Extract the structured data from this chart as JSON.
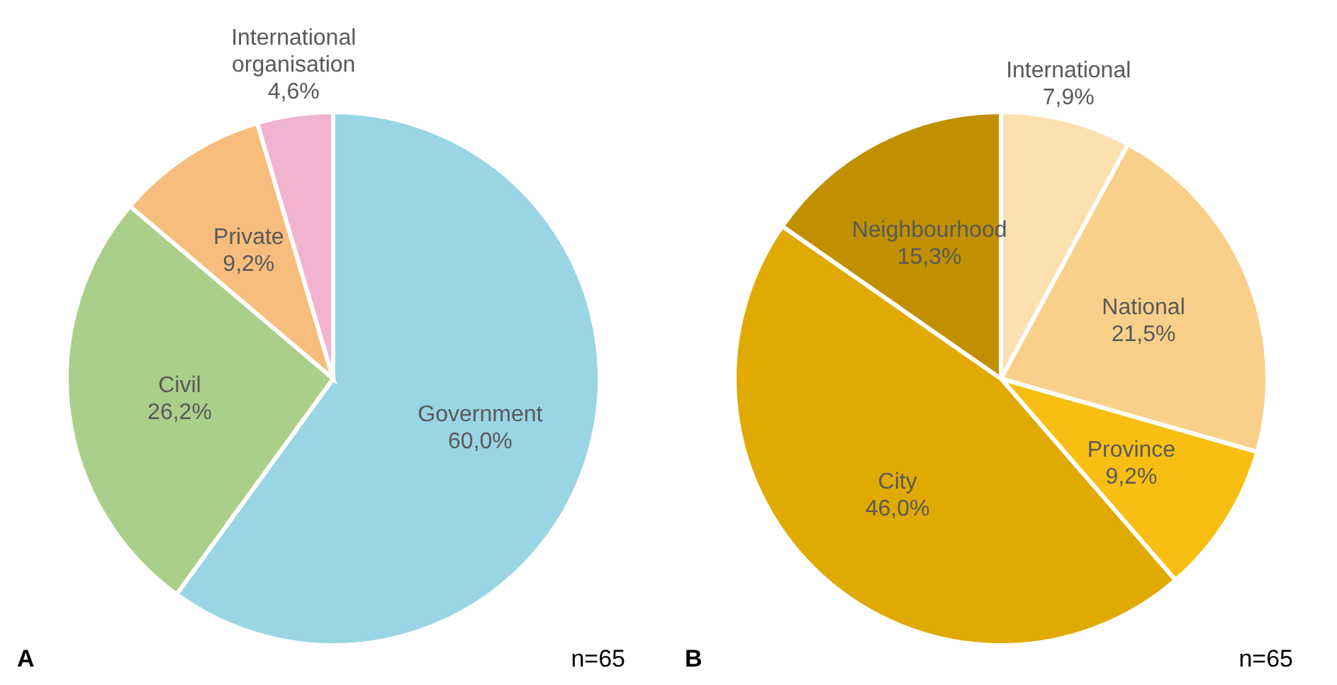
{
  "chart_data": [
    {
      "type": "pie",
      "title": "A",
      "annotations": [
        "n=65"
      ],
      "legend": false,
      "categories": [
        "Government",
        "Civil",
        "Private",
        "International organisation"
      ],
      "values": [
        60.0,
        26.2,
        9.2,
        4.6
      ],
      "value_labels": [
        "60,0%",
        "26,2%",
        "9,2%",
        "4,6%"
      ],
      "colors": [
        "#99d5e4",
        "#aacf8a",
        "#f7bd7c",
        "#f2b3d0"
      ]
    },
    {
      "type": "pie",
      "title": "B",
      "annotations": [
        "n=65"
      ],
      "legend": false,
      "categories": [
        "International",
        "National",
        "Province",
        "City",
        "Neighbourhood"
      ],
      "values": [
        7.9,
        21.5,
        9.2,
        46.0,
        15.3
      ],
      "value_labels": [
        "7,9%",
        "21,5%",
        "9,2%",
        "46,0%",
        "15,3%"
      ],
      "colors": [
        "#fde0b0",
        "#f9d08a",
        "#f8bf12",
        "#e0aa00",
        "#c09000"
      ]
    }
  ]
}
